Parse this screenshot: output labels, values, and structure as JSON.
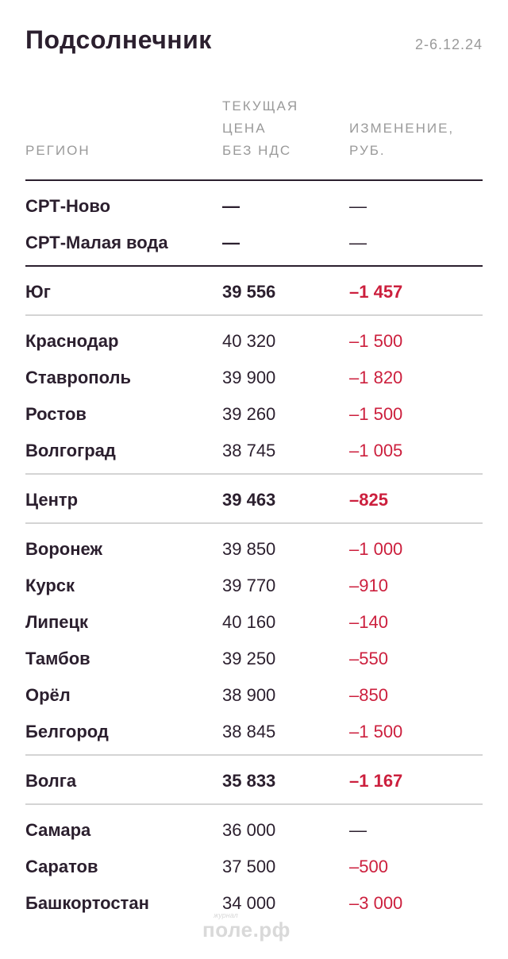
{
  "title": "Подсолнечник",
  "date": "2-6.12.24",
  "headers": {
    "region": "РЕГИОН",
    "price": "ТЕКУЩАЯ\nЦЕНА\nБЕЗ НДС",
    "change": "ИЗМЕНЕНИЕ,\nРУБ."
  },
  "rows": [
    {
      "region": "СРТ-Ново",
      "price": "—",
      "change": "—"
    },
    {
      "region": "СРТ-Малая вода",
      "price": "—",
      "change": "—"
    },
    {
      "region": "Юг",
      "price": "39 556",
      "change": "–1 457"
    },
    {
      "region": "Краснодар",
      "price": "40 320",
      "change": "–1 500"
    },
    {
      "region": "Ставрополь",
      "price": "39 900",
      "change": "–1 820"
    },
    {
      "region": "Ростов",
      "price": "39 260",
      "change": "–1 500"
    },
    {
      "region": "Волгоград",
      "price": "38 745",
      "change": "–1 005"
    },
    {
      "region": "Центр",
      "price": "39 463",
      "change": "–825"
    },
    {
      "region": "Воронеж",
      "price": "39 850",
      "change": "–1 000"
    },
    {
      "region": "Курск",
      "price": "39 770",
      "change": "–910"
    },
    {
      "region": "Липецк",
      "price": "40 160",
      "change": "–140"
    },
    {
      "region": "Тамбов",
      "price": "39 250",
      "change": "–550"
    },
    {
      "region": "Орёл",
      "price": "38 900",
      "change": "–850"
    },
    {
      "region": "Белгород",
      "price": "38 845",
      "change": "–1 500"
    },
    {
      "region": "Волга",
      "price": "35 833",
      "change": "–1 167"
    },
    {
      "region": "Самара",
      "price": "36 000",
      "change": "—"
    },
    {
      "region": "Саратов",
      "price": "37 500",
      "change": "–500"
    },
    {
      "region": "Башкортостан",
      "price": "34 000",
      "change": "–3 000"
    }
  ],
  "watermark": {
    "small": "журнал",
    "big": "поле.рф"
  },
  "colors": {
    "negative": "#cc1f3d",
    "text": "#2b1f2e",
    "muted": "#9a9a9a"
  }
}
